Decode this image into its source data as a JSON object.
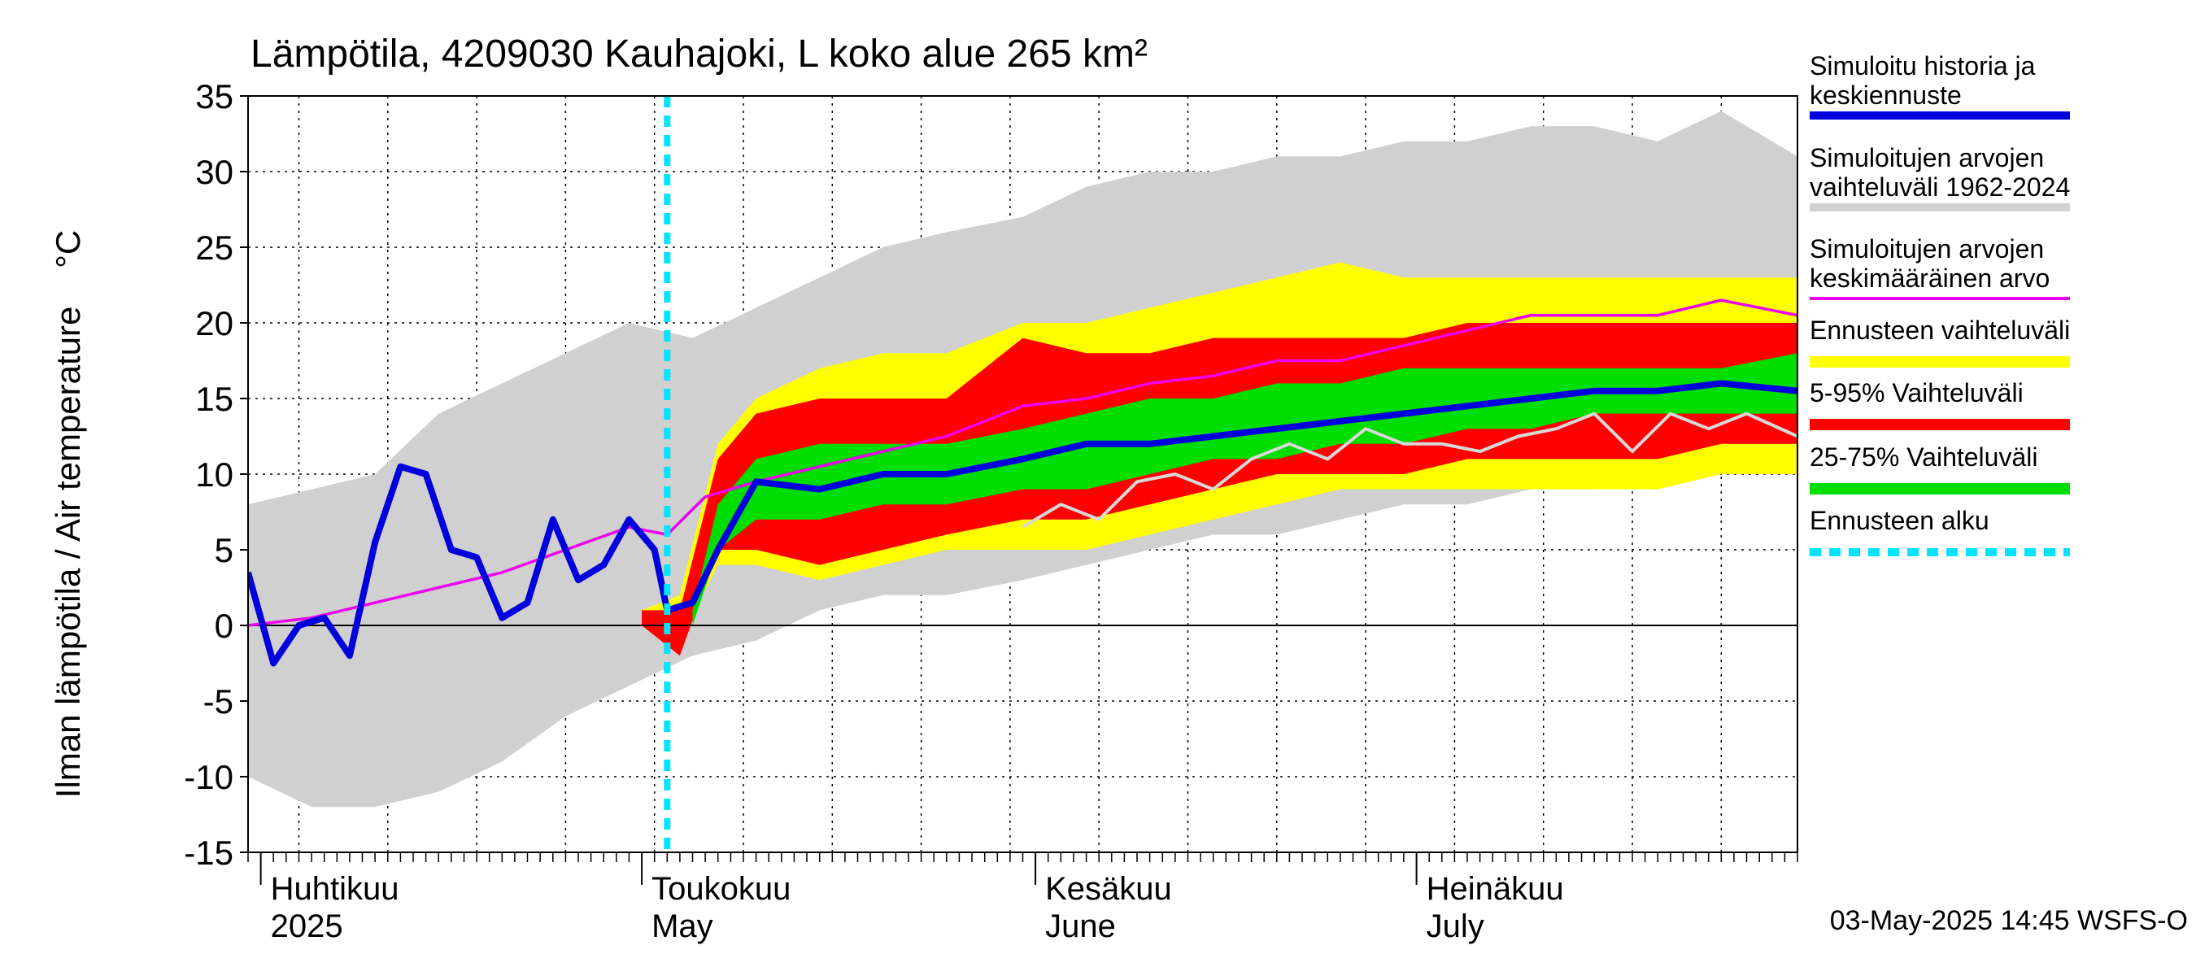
{
  "chart_data": {
    "type": "area",
    "title": "Lämpötila, 4209030 Kauhajoki, L koko alue 265 km²",
    "ylabel": "Ilman lämpötila / Air temperature    °C",
    "xlabel": "",
    "ylim": [
      -15,
      35
    ],
    "yticks": [
      -15,
      -10,
      -5,
      0,
      5,
      10,
      15,
      20,
      25,
      30,
      35
    ],
    "x_start": "2025-03-31",
    "x_end": "2025-07-31",
    "forecast_start": "2025-05-03",
    "grid": true,
    "legend_position": "right",
    "timestamp": "03-May-2025 14:45 WSFS-O",
    "month_labels": [
      {
        "date": "2025-04-01",
        "fi": "Huhtikuu",
        "en": "2025"
      },
      {
        "date": "2025-05-01",
        "fi": "Toukokuu",
        "en": "May"
      },
      {
        "date": "2025-06-01",
        "fi": "Kesäkuu",
        "en": "June"
      },
      {
        "date": "2025-07-01",
        "fi": "Heinäkuu",
        "en": "July"
      }
    ],
    "legend": [
      {
        "label": "Simuloitu historia ja keskiennuste",
        "color": "#0000dd",
        "style": "solid"
      },
      {
        "label": "Simuloitujen arvojen vaihteluväli 1962-2024",
        "color": "#d0d0d0",
        "style": "solid"
      },
      {
        "label": "Simuloitujen arvojen keskimääräinen arvo",
        "color": "#ee00ee",
        "style": "solid"
      },
      {
        "label": "Ennusteen vaihteluväli",
        "color": "#ffff00",
        "style": "solid"
      },
      {
        "label": "5-95% Vaihteluväli",
        "color": "#ff0000",
        "style": "solid"
      },
      {
        "label": "25-75% Vaihteluväli",
        "color": "#00dd00",
        "style": "solid"
      },
      {
        "label": "Ennusteen alku",
        "color": "#00e5ff",
        "style": "dashed"
      }
    ],
    "series": [
      {
        "name": "Simuloitujen arvojen vaihteluväli 1962-2024",
        "kind": "band",
        "color": "#d0d0d0",
        "x": [
          "2025-03-31",
          "2025-04-05",
          "2025-04-10",
          "2025-04-15",
          "2025-04-20",
          "2025-04-25",
          "2025-04-30",
          "2025-05-05",
          "2025-05-10",
          "2025-05-15",
          "2025-05-20",
          "2025-05-25",
          "2025-05-31",
          "2025-06-05",
          "2025-06-10",
          "2025-06-15",
          "2025-06-20",
          "2025-06-25",
          "2025-06-30",
          "2025-07-05",
          "2025-07-10",
          "2025-07-15",
          "2025-07-20",
          "2025-07-25",
          "2025-07-31"
        ],
        "upper": [
          8,
          9,
          10,
          14,
          16,
          18,
          20,
          19,
          21,
          23,
          25,
          26,
          27,
          29,
          30,
          30,
          31,
          31,
          32,
          32,
          33,
          33,
          32,
          34,
          31
        ],
        "lower": [
          -10,
          -12,
          -12,
          -11,
          -9,
          -6,
          -4,
          -2,
          -1,
          1,
          2,
          2,
          3,
          4,
          5,
          6,
          6,
          7,
          8,
          8,
          9,
          9,
          10,
          10,
          12
        ]
      },
      {
        "name": "Ennusteen vaihteluväli",
        "kind": "band",
        "color": "#ffff00",
        "x": [
          "2025-05-01",
          "2025-05-04",
          "2025-05-07",
          "2025-05-10",
          "2025-05-15",
          "2025-05-20",
          "2025-05-25",
          "2025-05-31",
          "2025-06-05",
          "2025-06-10",
          "2025-06-15",
          "2025-06-20",
          "2025-06-25",
          "2025-06-30",
          "2025-07-05",
          "2025-07-10",
          "2025-07-15",
          "2025-07-20",
          "2025-07-25",
          "2025-07-31"
        ],
        "upper": [
          1,
          2,
          12,
          15,
          17,
          18,
          18,
          20,
          20,
          21,
          22,
          23,
          24,
          23,
          23,
          23,
          23,
          23,
          23,
          23
        ],
        "lower": [
          0,
          -1,
          4,
          4,
          3,
          4,
          5,
          5,
          5,
          6,
          7,
          8,
          9,
          9,
          9,
          9,
          9,
          9,
          10,
          10
        ]
      },
      {
        "name": "5-95% Vaihteluväli",
        "kind": "band",
        "color": "#ff0000",
        "x": [
          "2025-05-01",
          "2025-05-04",
          "2025-05-07",
          "2025-05-10",
          "2025-05-15",
          "2025-05-20",
          "2025-05-25",
          "2025-05-31",
          "2025-06-05",
          "2025-06-10",
          "2025-06-15",
          "2025-06-20",
          "2025-06-25",
          "2025-06-30",
          "2025-07-05",
          "2025-07-10",
          "2025-07-15",
          "2025-07-20",
          "2025-07-25",
          "2025-07-31"
        ],
        "upper": [
          1,
          1,
          11,
          14,
          15,
          15,
          15,
          19,
          18,
          18,
          19,
          19,
          19,
          19,
          20,
          20,
          20,
          20,
          20,
          20
        ],
        "lower": [
          0,
          -2,
          5,
          5,
          4,
          5,
          6,
          7,
          7,
          8,
          9,
          10,
          10,
          10,
          11,
          11,
          11,
          11,
          12,
          12
        ]
      },
      {
        "name": "25-75% Vaihteluväli",
        "kind": "band",
        "color": "#00dd00",
        "x": [
          "2025-05-05",
          "2025-05-07",
          "2025-05-10",
          "2025-05-15",
          "2025-05-20",
          "2025-05-25",
          "2025-05-31",
          "2025-06-05",
          "2025-06-10",
          "2025-06-15",
          "2025-06-20",
          "2025-06-25",
          "2025-06-30",
          "2025-07-05",
          "2025-07-10",
          "2025-07-15",
          "2025-07-20",
          "2025-07-25",
          "2025-07-31"
        ],
        "upper": [
          1,
          8,
          11,
          12,
          12,
          12,
          13,
          14,
          15,
          15,
          16,
          16,
          17,
          17,
          17,
          17,
          17,
          17,
          18
        ],
        "lower": [
          0,
          5,
          7,
          7,
          8,
          8,
          9,
          9,
          10,
          11,
          11,
          12,
          12,
          13,
          13,
          14,
          14,
          14,
          14
        ]
      },
      {
        "name": "Simuloitujen arvojen keskimääräinen arvo",
        "kind": "line",
        "color": "#ee00ee",
        "x": [
          "2025-03-31",
          "2025-04-05",
          "2025-04-10",
          "2025-04-15",
          "2025-04-20",
          "2025-04-25",
          "2025-04-30",
          "2025-05-03",
          "2025-05-06",
          "2025-05-10",
          "2025-05-15",
          "2025-05-20",
          "2025-05-25",
          "2025-05-31",
          "2025-06-05",
          "2025-06-10",
          "2025-06-15",
          "2025-06-20",
          "2025-06-25",
          "2025-06-30",
          "2025-07-05",
          "2025-07-10",
          "2025-07-15",
          "2025-07-20",
          "2025-07-25",
          "2025-07-31"
        ],
        "y": [
          0,
          0.5,
          1.5,
          2.5,
          3.5,
          5,
          6.5,
          6,
          8.5,
          9.5,
          10.5,
          11.5,
          12.5,
          14.5,
          15,
          16,
          16.5,
          17.5,
          17.5,
          18.5,
          19.5,
          20.5,
          20.5,
          20.5,
          21.5,
          20.5
        ]
      },
      {
        "name": "Simuloitu historia ja keskiennuste",
        "kind": "line",
        "color": "#0000dd",
        "x": [
          "2025-03-31",
          "2025-04-02",
          "2025-04-04",
          "2025-04-06",
          "2025-04-08",
          "2025-04-10",
          "2025-04-12",
          "2025-04-14",
          "2025-04-16",
          "2025-04-18",
          "2025-04-20",
          "2025-04-22",
          "2025-04-24",
          "2025-04-26",
          "2025-04-28",
          "2025-04-30",
          "2025-05-02",
          "2025-05-03",
          "2025-05-05",
          "2025-05-07",
          "2025-05-10",
          "2025-05-15",
          "2025-05-20",
          "2025-05-25",
          "2025-05-31",
          "2025-06-05",
          "2025-06-10",
          "2025-06-15",
          "2025-06-20",
          "2025-06-25",
          "2025-06-30",
          "2025-07-05",
          "2025-07-10",
          "2025-07-15",
          "2025-07-20",
          "2025-07-25",
          "2025-07-31"
        ],
        "y": [
          3.5,
          -2.5,
          0,
          0.5,
          -2,
          5.5,
          10.5,
          10,
          5,
          4.5,
          0.5,
          1.5,
          7,
          3,
          4,
          7,
          5,
          1,
          1.5,
          5,
          9.5,
          9,
          10,
          10,
          11,
          12,
          12,
          12.5,
          13,
          13.5,
          14,
          14.5,
          15,
          15.5,
          15.5,
          16,
          15.5
        ]
      },
      {
        "name": "Gray observed line",
        "kind": "line",
        "color": "#d8d8d8",
        "x": [
          "2025-05-31",
          "2025-06-03",
          "2025-06-06",
          "2025-06-09",
          "2025-06-12",
          "2025-06-15",
          "2025-06-18",
          "2025-06-21",
          "2025-06-24",
          "2025-06-27",
          "2025-06-30",
          "2025-07-03",
          "2025-07-06",
          "2025-07-09",
          "2025-07-12",
          "2025-07-15",
          "2025-07-18",
          "2025-07-21",
          "2025-07-24",
          "2025-07-27",
          "2025-07-31"
        ],
        "y": [
          6.5,
          8,
          7,
          9.5,
          10,
          9,
          11,
          12,
          11,
          13,
          12,
          12,
          11.5,
          12.5,
          13,
          14,
          11.5,
          14,
          13,
          14,
          12.5
        ]
      }
    ]
  }
}
